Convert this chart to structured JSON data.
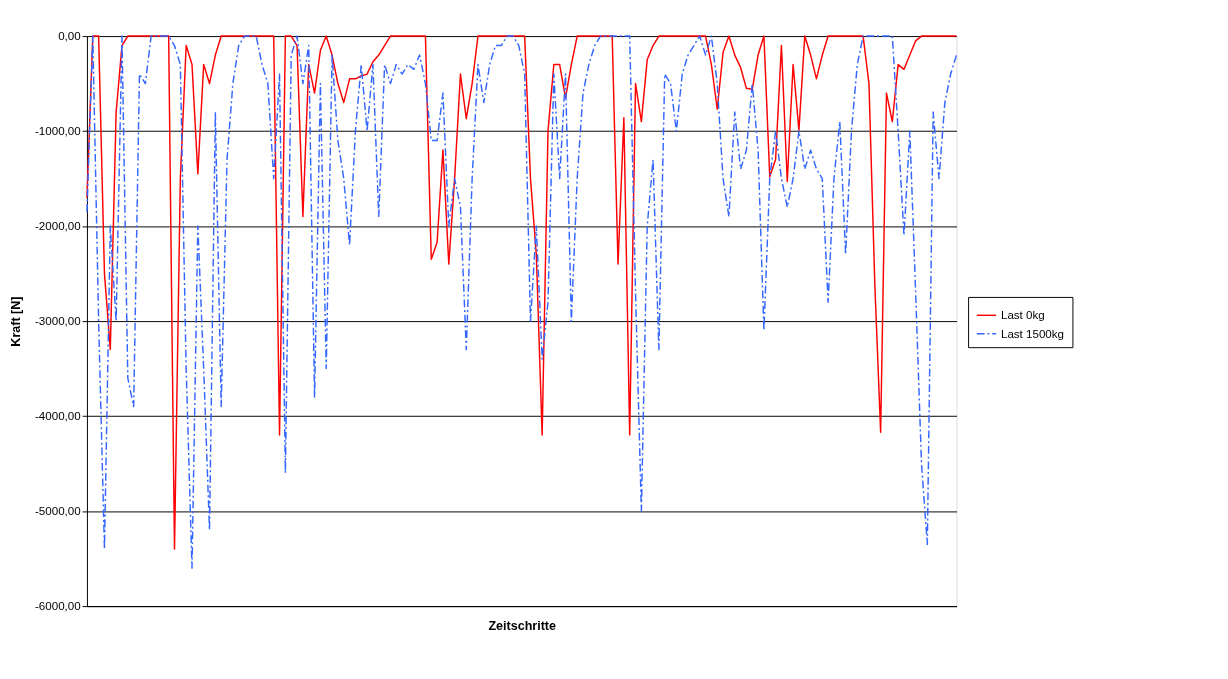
{
  "chart_data": {
    "type": "line",
    "xlabel": "Zeitschritte",
    "ylabel": "Kraft [N]",
    "categories": [
      null,
      null,
      null,
      null,
      null,
      null,
      null,
      null,
      null,
      null,
      null,
      null,
      null,
      null,
      null,
      null,
      null,
      null,
      null,
      null,
      null,
      null,
      null,
      null,
      null,
      null,
      null,
      null,
      null,
      null,
      null,
      null,
      null,
      null,
      null,
      null,
      null,
      null,
      null,
      null,
      null,
      null,
      null,
      null,
      null,
      null,
      null,
      null,
      null,
      null,
      null,
      null,
      null,
      null,
      null,
      null,
      null,
      null,
      null,
      null,
      null,
      null,
      null,
      null,
      null,
      null,
      null,
      null,
      null,
      null,
      null,
      null,
      null,
      null,
      null,
      null,
      null,
      null,
      null,
      null,
      null,
      null,
      null,
      null,
      null,
      null,
      null,
      null,
      null,
      null,
      null,
      null,
      null,
      null,
      null,
      null,
      null,
      null,
      null,
      null,
      null,
      null,
      null,
      null,
      null,
      null,
      null,
      null,
      null,
      null,
      null,
      null,
      null,
      null,
      null,
      null,
      null,
      null,
      null,
      null,
      null,
      null,
      null,
      null,
      null,
      null,
      null,
      null,
      null,
      null,
      null,
      null,
      null,
      null,
      null,
      null,
      null,
      null,
      null,
      null,
      null,
      null,
      null,
      null,
      null,
      null,
      null,
      null,
      null,
      null
    ],
    "series": [
      {
        "name": "Last 0kg",
        "color": "#ff0000",
        "line_style": "solid",
        "values": [
          -1700,
          0,
          0,
          -2500,
          -3300,
          -800,
          -100,
          0,
          0,
          0,
          0,
          0,
          0,
          0,
          0,
          -5400,
          -1500,
          -100,
          -300,
          -1450,
          -300,
          -500,
          -200,
          0,
          0,
          0,
          0,
          0,
          0,
          0,
          0,
          0,
          0,
          -4200,
          0,
          0,
          -100,
          -1900,
          -300,
          -600,
          -150,
          0,
          -200,
          -500,
          -700,
          -450,
          -450,
          -420,
          -400,
          -270,
          -200,
          -100,
          0,
          0,
          0,
          0,
          0,
          0,
          0,
          -2350,
          -2170,
          -1200,
          -2400,
          -1500,
          -400,
          -870,
          -500,
          0,
          0,
          0,
          0,
          0,
          0,
          0,
          0,
          0,
          -1500,
          -2300,
          -4200,
          -1000,
          -300,
          -300,
          -650,
          -300,
          0,
          0,
          0,
          0,
          0,
          0,
          0,
          -2400,
          -860,
          -4200,
          -500,
          -900,
          -250,
          -100,
          0,
          0,
          0,
          0,
          0,
          0,
          0,
          0,
          0,
          -300,
          -770,
          -170,
          0,
          -200,
          -330,
          -550,
          -560,
          -200,
          0,
          -1480,
          -1300,
          -100,
          -1530,
          -300,
          -990,
          0,
          -200,
          -450,
          -200,
          0,
          0,
          0,
          0,
          0,
          0,
          0,
          -500,
          -2610,
          -4170,
          -600,
          -900,
          -300,
          -350,
          -200,
          -50,
          0,
          0,
          0,
          0,
          0,
          0,
          0
        ]
      },
      {
        "name": "Last 1500kg",
        "color": "#3366ff",
        "line_style": "dashed",
        "values": [
          -1850,
          0,
          -3000,
          -5400,
          -2000,
          -3000,
          0,
          -3600,
          -3900,
          -400,
          -500,
          0,
          0,
          0,
          0,
          -100,
          -300,
          -3500,
          -5600,
          -2000,
          -3500,
          -5200,
          -800,
          -3900,
          -1300,
          -500,
          -100,
          0,
          0,
          0,
          -300,
          -500,
          -1500,
          -400,
          -4600,
          -200,
          0,
          -500,
          -100,
          -3800,
          -500,
          -3500,
          -200,
          -1100,
          -1500,
          -2200,
          -1000,
          -300,
          -1000,
          -300,
          -1900,
          -300,
          -500,
          -300,
          -400,
          -300,
          -350,
          -200,
          -500,
          -1100,
          -1100,
          -600,
          -2000,
          -1500,
          -1800,
          -3300,
          -1500,
          -300,
          -700,
          -300,
          -100,
          -100,
          0,
          0,
          -100,
          -400,
          -3000,
          -2000,
          -3400,
          -2800,
          -400,
          -1500,
          -400,
          -3000,
          -1500,
          -600,
          -300,
          -100,
          0,
          0,
          0,
          0,
          0,
          0,
          -2700,
          -5000,
          -2000,
          -1300,
          -3300,
          -400,
          -500,
          -1000,
          -400,
          -200,
          -100,
          0,
          -200,
          0,
          -500,
          -1500,
          -1900,
          -800,
          -1400,
          -1200,
          -500,
          -1200,
          -3100,
          -1500,
          -1000,
          -1500,
          -1800,
          -1500,
          -1000,
          -1400,
          -1200,
          -1400,
          -1500,
          -2800,
          -1500,
          -900,
          -2300,
          -1000,
          -300,
          0,
          0,
          0,
          0,
          0,
          0,
          -1000,
          -2100,
          -1000,
          -2700,
          -4500,
          -5350,
          -800,
          -1500,
          -700,
          -400,
          -200
        ]
      }
    ],
    "ylim": [
      -6000,
      0
    ],
    "yticks": [
      {
        "value": -6000,
        "label": "-6000,00"
      },
      {
        "value": -5000,
        "label": "-5000,00"
      },
      {
        "value": -4000,
        "label": "-4000,00"
      },
      {
        "value": -3000,
        "label": "-3000,00"
      },
      {
        "value": -2000,
        "label": "-2000,00"
      },
      {
        "value": -1000,
        "label": "-1000,00"
      },
      {
        "value": 0,
        "label": "0,00"
      }
    ],
    "grid": "y",
    "legend": "right",
    "tick_labels": "y"
  }
}
